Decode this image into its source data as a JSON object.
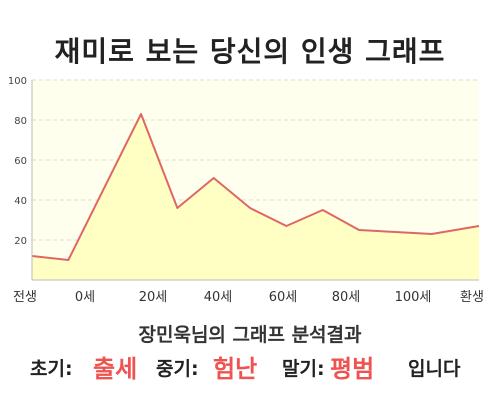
{
  "page": {
    "title": "재미로 보는 당신의 인생 그래프"
  },
  "chart_data": {
    "type": "area",
    "x_labels": [
      "전생",
      "0세",
      "20세",
      "40세",
      "60세",
      "80세",
      "100세",
      "환생"
    ],
    "x": [
      -10,
      0,
      20,
      30,
      40,
      50,
      60,
      70,
      80,
      90,
      100,
      113
    ],
    "y": [
      12,
      10,
      83,
      36,
      51,
      36,
      27,
      35,
      25,
      24,
      23,
      27
    ],
    "ylim": [
      0,
      100
    ],
    "yticks": [
      20,
      40,
      60,
      80,
      100
    ],
    "grid": true,
    "colors": {
      "line": "#e06666",
      "fill": "#ffffc4",
      "plot_bg": "#ffffee",
      "grid": "#ddddcc"
    }
  },
  "result": {
    "heading": "장민욱님의 그래프 분석결과",
    "early_label": "초기:",
    "early_value": "출세",
    "middle_label": "중기:",
    "middle_value": "험난",
    "late_label": "말기:",
    "late_value": "평범",
    "ending": "입니다"
  }
}
